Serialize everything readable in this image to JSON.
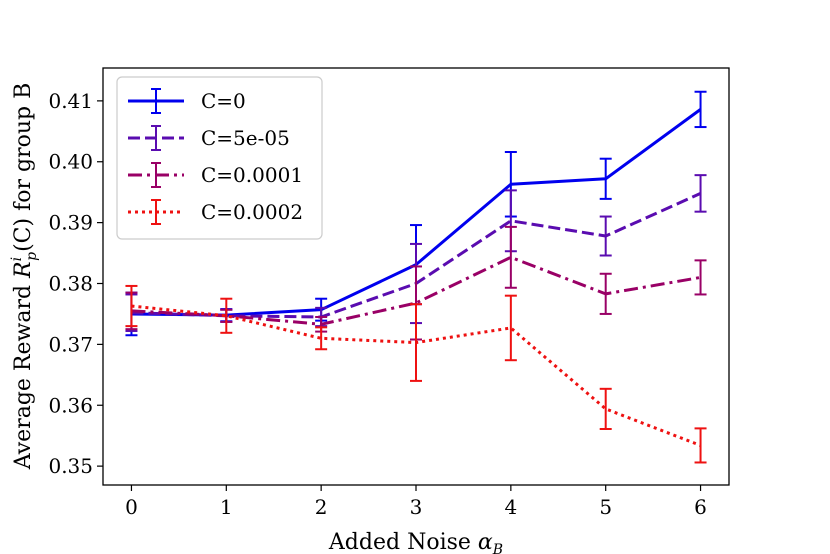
{
  "chart_data": {
    "type": "line",
    "xlabel_text": "Added Noise",
    "xlabel_symbol": "α",
    "xlabel_sub": "B",
    "ylabel_prefix": "Average Reward",
    "ylabel_symbol": "R",
    "ylabel_sup": "i",
    "ylabel_sub": "p",
    "ylabel_arg": "(C)",
    "ylabel_suffix": "for group B",
    "x": [
      0,
      1,
      2,
      3,
      4,
      5,
      6
    ],
    "x_ticks": [
      "0",
      "1",
      "2",
      "3",
      "4",
      "5",
      "6"
    ],
    "y_ticks": [
      "0.35",
      "0.36",
      "0.37",
      "0.38",
      "0.39",
      "0.40",
      "0.41"
    ],
    "xlim": [
      -0.3,
      6.3
    ],
    "ylim": [
      0.3469,
      0.4154
    ],
    "grid": false,
    "legend_position": "top-left",
    "series": [
      {
        "name": "C=0",
        "color": "#0000ee",
        "style": "solid",
        "values": [
          0.375,
          0.3748,
          0.3757,
          0.3831,
          0.3963,
          0.3972,
          0.4086
        ],
        "errors": [
          0.0035,
          0.001,
          0.0018,
          0.0065,
          0.0053,
          0.0033,
          0.0029
        ]
      },
      {
        "name": "C=5e-05",
        "color": "#5a0cb0",
        "style": "dashed",
        "values": [
          0.3752,
          0.3747,
          0.3745,
          0.38,
          0.3903,
          0.3878,
          0.3948
        ],
        "errors": [
          0.003,
          0.001,
          0.0015,
          0.0065,
          0.005,
          0.0032,
          0.003
        ]
      },
      {
        "name": "C=0.0001",
        "color": "#990066",
        "style": "dashdot",
        "values": [
          0.3755,
          0.3747,
          0.3733,
          0.3768,
          0.3843,
          0.3783,
          0.381
        ],
        "errors": [
          0.003,
          0.001,
          0.0012,
          0.006,
          0.005,
          0.0033,
          0.0028
        ]
      },
      {
        "name": "C=0.0002",
        "color": "#ee1111",
        "style": "dotted",
        "values": [
          0.3763,
          0.3747,
          0.371,
          0.3703,
          0.3727,
          0.3594,
          0.3534
        ],
        "errors": [
          0.0033,
          0.0028,
          0.0018,
          0.0063,
          0.0053,
          0.0033,
          0.0028
        ]
      }
    ]
  }
}
